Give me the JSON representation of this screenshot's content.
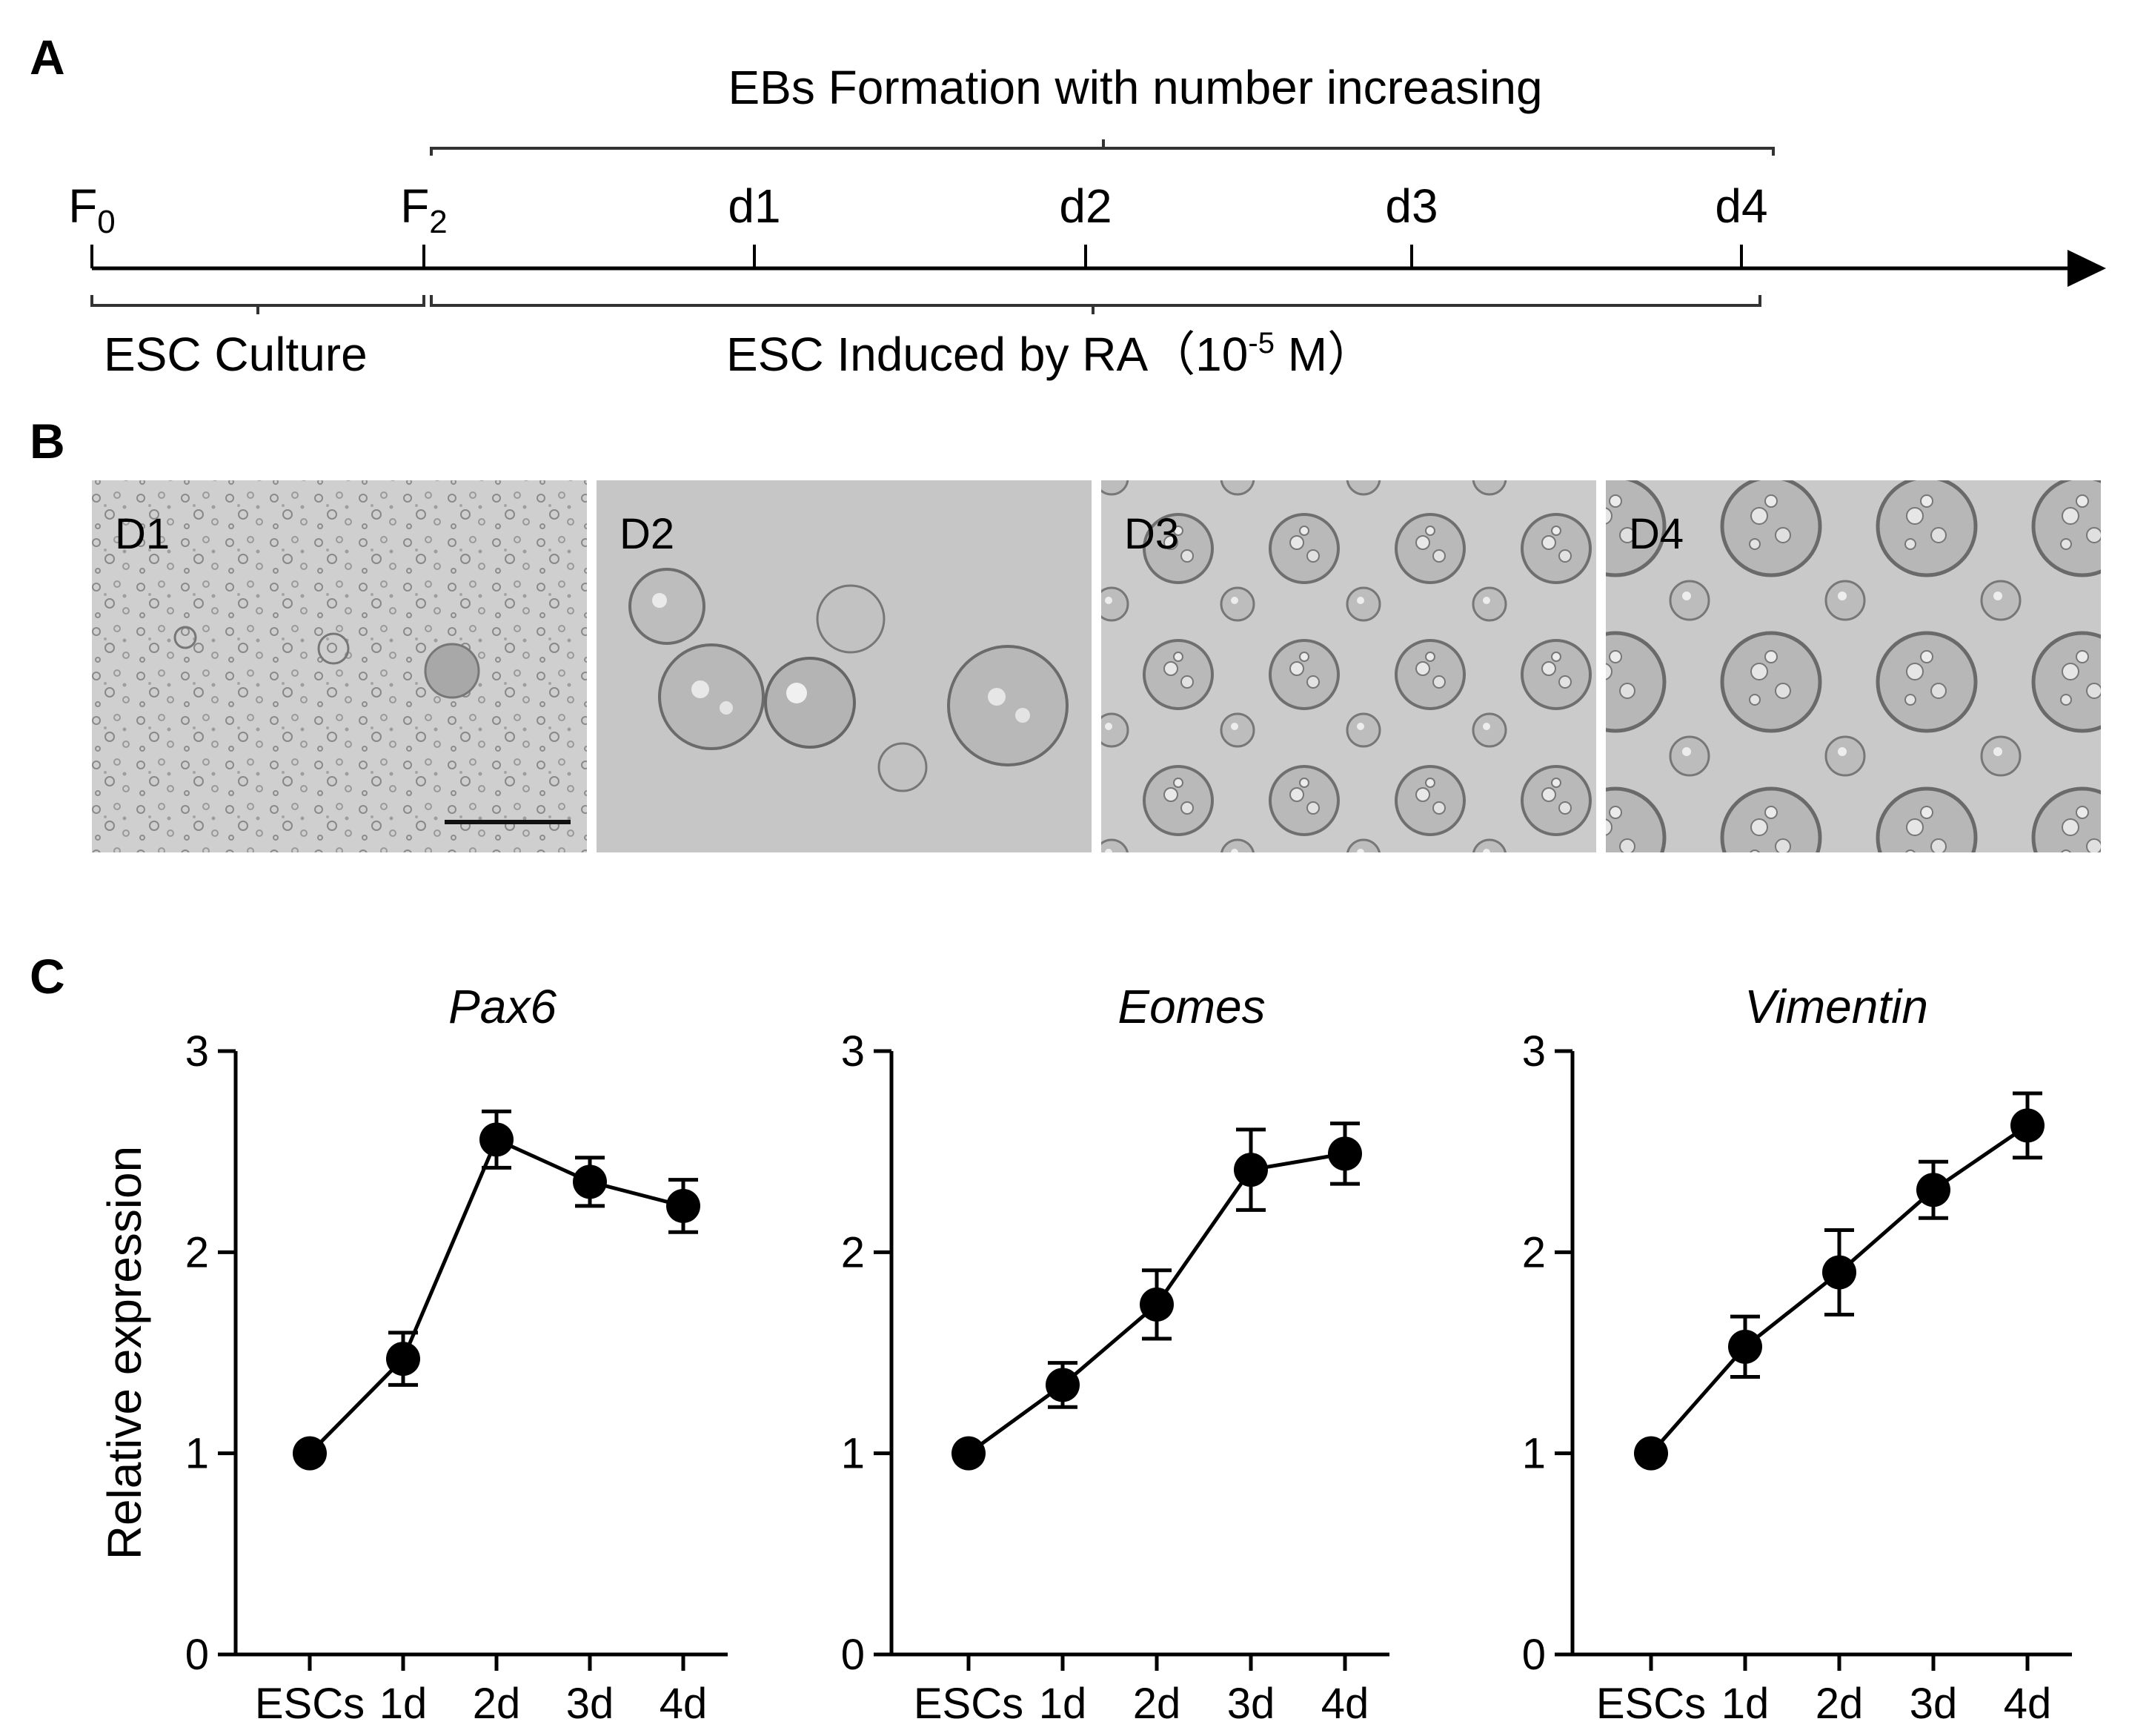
{
  "panels": {
    "a": "A",
    "b": "B",
    "c": "C"
  },
  "timeline": {
    "top_label": "EBs Formation with number increasing",
    "points": [
      {
        "name": "F",
        "sub": "0"
      },
      {
        "name": "F",
        "sub": "2"
      },
      {
        "name": "d1",
        "sub": ""
      },
      {
        "name": "d2",
        "sub": ""
      },
      {
        "name": "d3",
        "sub": ""
      },
      {
        "name": "d4",
        "sub": ""
      }
    ],
    "bottom_left": "ESC Culture",
    "bottom_right_pre": "ESC Induced by RA（10",
    "bottom_right_sup": "-5",
    "bottom_right_post": " M）"
  },
  "micrographs": [
    "D1",
    "D2",
    "D3",
    "D4"
  ],
  "chart_data": [
    {
      "type": "line",
      "title": "Pax6",
      "ylabel": "Relative expression",
      "categories": [
        "ESCs",
        "1d",
        "2d",
        "3d",
        "4d"
      ],
      "values": [
        1.0,
        1.47,
        2.56,
        2.35,
        2.23
      ],
      "errors": [
        0.0,
        0.13,
        0.14,
        0.12,
        0.13
      ],
      "ylim": [
        0,
        3
      ],
      "yticks": [
        "0",
        "1",
        "2",
        "3"
      ]
    },
    {
      "type": "line",
      "title": "Eomes",
      "ylabel": "",
      "categories": [
        "ESCs",
        "1d",
        "2d",
        "3d",
        "4d"
      ],
      "values": [
        1.0,
        1.34,
        1.74,
        2.41,
        2.49
      ],
      "errors": [
        0.0,
        0.11,
        0.17,
        0.2,
        0.15
      ],
      "ylim": [
        0,
        3
      ],
      "yticks": [
        "0",
        "1",
        "2",
        "3"
      ]
    },
    {
      "type": "line",
      "title": "Vimentin",
      "ylabel": "",
      "categories": [
        "ESCs",
        "1d",
        "2d",
        "3d",
        "4d"
      ],
      "values": [
        1.0,
        1.53,
        1.9,
        2.31,
        2.63
      ],
      "errors": [
        0.0,
        0.15,
        0.21,
        0.14,
        0.16
      ],
      "ylim": [
        0,
        3
      ],
      "yticks": [
        "0",
        "1",
        "2",
        "3"
      ]
    }
  ]
}
